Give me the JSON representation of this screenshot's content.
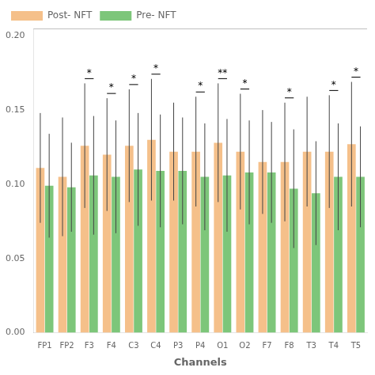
{
  "chart_data": {
    "type": "bar",
    "xlabel": "Channels",
    "categories": [
      "FP1",
      "FP2",
      "F3",
      "F4",
      "C3",
      "C4",
      "P3",
      "P4",
      "O1",
      "O2",
      "F7",
      "F8",
      "T3",
      "T4",
      "T5"
    ],
    "series": [
      {
        "name": "Post- NFT",
        "color": "#F5C08A",
        "values": [
          0.111,
          0.105,
          0.126,
          0.12,
          0.126,
          0.13,
          0.122,
          0.122,
          0.128,
          0.122,
          0.115,
          0.115,
          0.122,
          0.122,
          0.127
        ],
        "errors": [
          0.037,
          0.04,
          0.042,
          0.038,
          0.038,
          0.041,
          0.033,
          0.037,
          0.04,
          0.039,
          0.035,
          0.04,
          0.037,
          0.038,
          0.042
        ]
      },
      {
        "name": "Pre- NFT",
        "color": "#7DC67A",
        "values": [
          0.099,
          0.098,
          0.106,
          0.105,
          0.11,
          0.109,
          0.109,
          0.105,
          0.106,
          0.108,
          0.108,
          0.097,
          0.094,
          0.105,
          0.105
        ],
        "errors": [
          0.035,
          0.03,
          0.04,
          0.038,
          0.038,
          0.038,
          0.036,
          0.036,
          0.038,
          0.035,
          0.034,
          0.04,
          0.035,
          0.036,
          0.034
        ]
      }
    ],
    "ylim": [
      0.0,
      0.205
    ],
    "yticks": [
      {
        "value": 0.0,
        "label": "0.00"
      },
      {
        "value": 0.05,
        "label": "0.05"
      },
      {
        "value": 0.1,
        "label": "0.10"
      },
      {
        "value": 0.15,
        "label": "0.15"
      },
      {
        "value": 0.2,
        "label": "0.20"
      }
    ],
    "grid": false,
    "legend": "upper left",
    "annotations": [
      {
        "category": "F3",
        "text": "*"
      },
      {
        "category": "F4",
        "text": "*"
      },
      {
        "category": "C3",
        "text": "*"
      },
      {
        "category": "C4",
        "text": "*"
      },
      {
        "category": "P4",
        "text": "*"
      },
      {
        "category": "O1",
        "text": "**"
      },
      {
        "category": "O2",
        "text": "*"
      },
      {
        "category": "F8",
        "text": "*"
      },
      {
        "category": "T4",
        "text": "*"
      },
      {
        "category": "T5",
        "text": "*"
      }
    ]
  }
}
